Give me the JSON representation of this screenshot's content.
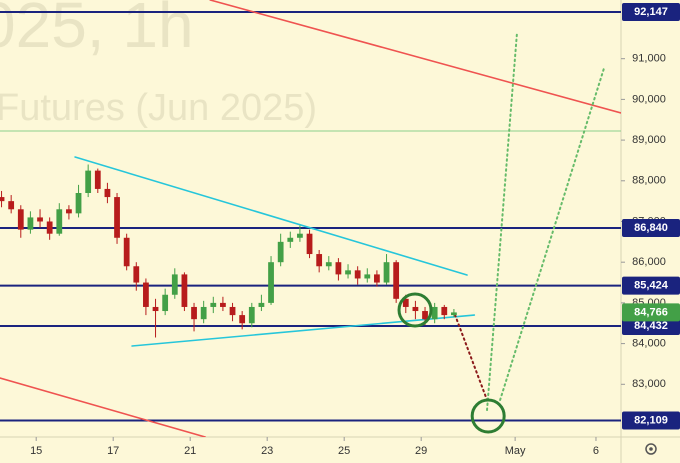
{
  "chart_data": {
    "type": "candlestick",
    "watermark": [
      "025, 1h",
      "Futures (Jun 2025)"
    ],
    "x": [
      -0.9,
      -0.65,
      -0.4,
      -0.15,
      0.1,
      0.35,
      0.6,
      0.85,
      1.1,
      1.35,
      1.6,
      1.85,
      2.1,
      2.35,
      2.6,
      2.85,
      3.1,
      3.35,
      3.6,
      3.85,
      4.1,
      4.35,
      4.6,
      4.85,
      5.1,
      5.35,
      5.6,
      5.85,
      6.1,
      6.35,
      6.6,
      6.85,
      7.1,
      7.35,
      7.6,
      7.85,
      8.1,
      8.35,
      8.6,
      8.85,
      9.1,
      9.35,
      9.6,
      9.85,
      10.1,
      10.35,
      10.6,
      10.85
    ],
    "open": [
      87600,
      87500,
      87300,
      86800,
      87100,
      87000,
      86700,
      87300,
      87200,
      87700,
      88250,
      87800,
      87600,
      86600,
      85900,
      85500,
      84900,
      84800,
      85200,
      85700,
      84900,
      84600,
      84900,
      85000,
      84900,
      84700,
      84500,
      84900,
      85000,
      86000,
      86500,
      86600,
      86700,
      86200,
      85900,
      86000,
      85700,
      85800,
      85600,
      85700,
      85500,
      86000,
      85100,
      84900,
      84800,
      84600,
      84900,
      84700
    ],
    "high": [
      87750,
      87650,
      87400,
      87250,
      87300,
      87100,
      87450,
      87400,
      87900,
      88400,
      88300,
      87950,
      87700,
      86700,
      86000,
      85600,
      85100,
      85350,
      85850,
      85750,
      85000,
      85050,
      85150,
      85150,
      85000,
      84800,
      85000,
      85200,
      86150,
      86700,
      86750,
      86900,
      86800,
      86300,
      86150,
      86100,
      85950,
      85900,
      85850,
      85800,
      86200,
      86050,
      85200,
      85050,
      84900,
      85000,
      84950,
      84850
    ],
    "low": [
      87350,
      87200,
      86600,
      86700,
      86850,
      86550,
      86650,
      87050,
      87100,
      87600,
      87700,
      87450,
      86450,
      85800,
      85300,
      84700,
      84150,
      84700,
      85100,
      84800,
      84300,
      84500,
      84750,
      84800,
      84550,
      84350,
      84400,
      84800,
      84950,
      85900,
      86350,
      86500,
      86100,
      85750,
      85800,
      85550,
      85600,
      85450,
      85500,
      85400,
      85450,
      85000,
      84750,
      84600,
      84450,
      84500,
      84600,
      84650
    ],
    "close": [
      87500,
      87300,
      86800,
      87100,
      87000,
      86700,
      87300,
      87200,
      87700,
      88250,
      87800,
      87600,
      86600,
      85900,
      85500,
      84900,
      84800,
      85200,
      85700,
      84900,
      84600,
      84900,
      85000,
      84900,
      84700,
      84500,
      84900,
      85000,
      86000,
      86500,
      86600,
      86700,
      86200,
      85900,
      86000,
      85700,
      85800,
      85600,
      85700,
      85500,
      86000,
      85100,
      84900,
      84800,
      84600,
      84900,
      84700,
      84766
    ],
    "up_color": "#43a047",
    "down_color": "#b71c1c",
    "xlim": [
      -0.94,
      15.19
    ],
    "xticks": [
      {
        "value": 0,
        "label": "15"
      },
      {
        "value": 2,
        "label": "17"
      },
      {
        "value": 4,
        "label": "21"
      },
      {
        "value": 6,
        "label": "23"
      },
      {
        "value": 8,
        "label": "25"
      },
      {
        "value": 10,
        "label": "29"
      },
      {
        "value": 12.44,
        "label": "May"
      },
      {
        "value": 14.54,
        "label": "6"
      }
    ],
    "ylim": [
      81705,
      92442
    ],
    "yticks": [
      {
        "value": 83000,
        "label": "83,000"
      },
      {
        "value": 84000,
        "label": "84,000"
      },
      {
        "value": 85000,
        "label": "85,000"
      },
      {
        "value": 86000,
        "label": "86,000"
      },
      {
        "value": 87000,
        "label": "87,000"
      },
      {
        "value": 88000,
        "label": "88,000"
      },
      {
        "value": 89000,
        "label": "89,000"
      },
      {
        "value": 90000,
        "label": "90,000"
      },
      {
        "value": 91000,
        "label": "91,000"
      }
    ],
    "levels": [
      {
        "value": 92147,
        "label": "92,147",
        "color": "#1a237e"
      },
      {
        "value": 86840,
        "label": "86,840",
        "color": "#1a237e"
      },
      {
        "value": 85424,
        "label": "85,424",
        "color": "#1a237e"
      },
      {
        "value": 84432,
        "label": "84,432",
        "color": "#1a237e"
      },
      {
        "value": 82109,
        "label": "82,109",
        "color": "#1a237e"
      }
    ],
    "last_price": {
      "value": 84766,
      "label": "84,766",
      "color": "#43a047"
    },
    "hlines": [
      {
        "value": 89223,
        "color": "#8bd18b"
      }
    ],
    "trendlines": [
      {
        "color": "#ef5350",
        "dash": false,
        "x": [
          4.52,
          15.19
        ],
        "y": [
          92442,
          89666
        ]
      },
      {
        "color": "#ef5350",
        "dash": false,
        "x": [
          -0.94,
          4.39
        ],
        "y": [
          83154,
          81705
        ]
      },
      {
        "color": "#26c6da",
        "dash": false,
        "x": [
          1.01,
          11.19
        ],
        "y": [
          88584,
          85685
        ]
      },
      {
        "color": "#26c6da",
        "dash": false,
        "x": [
          2.49,
          11.38
        ],
        "y": [
          83941,
          84702
        ]
      },
      {
        "color": "#8b1a1a",
        "dash": true,
        "x": [
          10.88,
          11.71
        ],
        "y": [
          84702,
          82614
        ]
      },
      {
        "color": "#66bb6a",
        "dash": true,
        "x": [
          11.71,
          12.49
        ],
        "y": [
          82368,
          91656
        ]
      },
      {
        "color": "#66bb6a",
        "dash": true,
        "x": [
          12.05,
          14.75
        ],
        "y": [
          82614,
          90771
        ]
      }
    ],
    "circles": [
      {
        "color": "#2e7d32",
        "x": 9.84,
        "y": 84825
      },
      {
        "color": "#2e7d32",
        "x": 11.74,
        "y": 82221
      }
    ]
  }
}
